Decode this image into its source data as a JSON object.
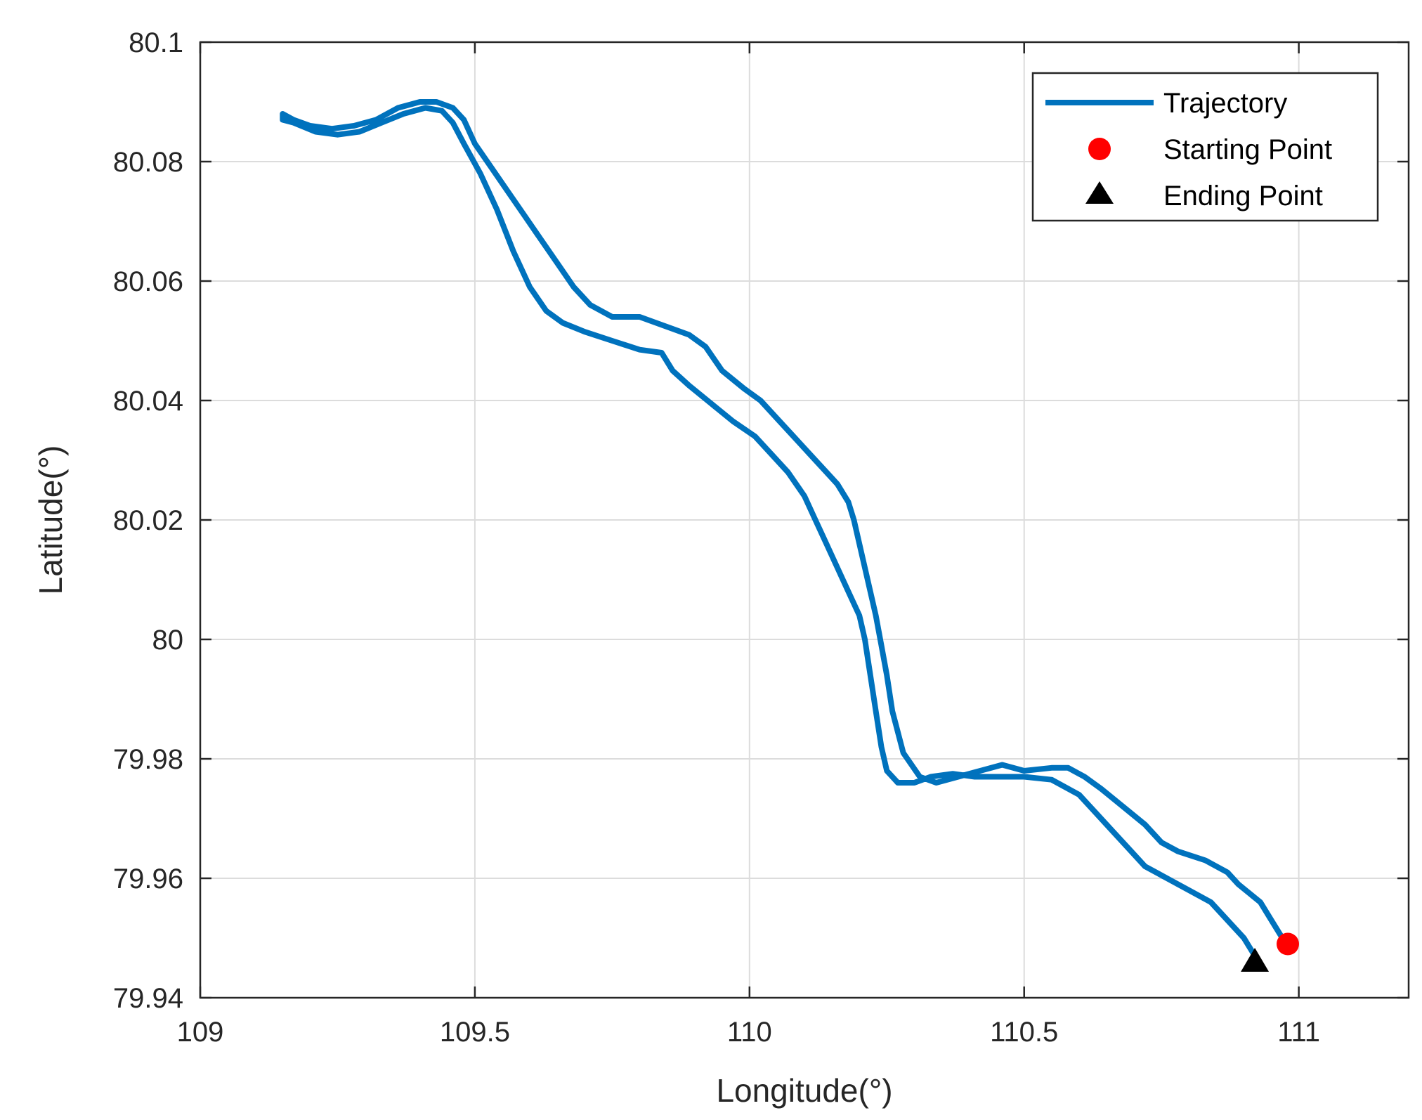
{
  "chart_data": {
    "type": "line",
    "title": "",
    "xlabel": "Longitude(°)",
    "ylabel": "Latitude(°)",
    "xlim": [
      109,
      111.2
    ],
    "ylim": [
      79.94,
      80.1
    ],
    "xticks": [
      109,
      109.5,
      110,
      110.5,
      111
    ],
    "xtick_labels": [
      "109",
      "109.5",
      "110",
      "110.5",
      "111"
    ],
    "yticks": [
      79.94,
      79.96,
      79.98,
      80,
      80.02,
      80.04,
      80.06,
      80.08,
      80.1
    ],
    "ytick_labels": [
      "79.94",
      "79.96",
      "79.98",
      "80",
      "80.02",
      "80.04",
      "80.06",
      "80.08",
      "80.1"
    ],
    "grid": true,
    "legend_position": "top-right",
    "series": [
      {
        "name": "Trajectory",
        "color": "#0072BD",
        "x": [
          110.97,
          110.95,
          110.93,
          110.89,
          110.87,
          110.83,
          110.78,
          110.75,
          110.72,
          110.68,
          110.64,
          110.61,
          110.58,
          110.55,
          110.5,
          110.46,
          110.42,
          110.38,
          110.34,
          110.31,
          110.28,
          110.26,
          110.25,
          110.24,
          110.23,
          110.22,
          110.21,
          110.2,
          110.19,
          110.18,
          110.16,
          110.14,
          110.11,
          110.08,
          110.05,
          110.02,
          109.99,
          109.95,
          109.92,
          109.89,
          109.86,
          109.83,
          109.8,
          109.75,
          109.71,
          109.68,
          109.65,
          109.62,
          109.59,
          109.56,
          109.53,
          109.5,
          109.48,
          109.46,
          109.43,
          109.4,
          109.36,
          109.32,
          109.28,
          109.24,
          109.2,
          109.17,
          109.15,
          109.15,
          109.17,
          109.21,
          109.25,
          109.29,
          109.33,
          109.37,
          109.41,
          109.44,
          109.46,
          109.48,
          109.51,
          109.54,
          109.57,
          109.6,
          109.63,
          109.66,
          109.7,
          109.75,
          109.8,
          109.84,
          109.86,
          109.89,
          109.93,
          109.97,
          110.01,
          110.04,
          110.07,
          110.1,
          110.12,
          110.14,
          110.16,
          110.18,
          110.2,
          110.21,
          110.22,
          110.23,
          110.24,
          110.25,
          110.27,
          110.3,
          110.33,
          110.37,
          110.41,
          110.45,
          110.5,
          110.55,
          110.6,
          110.63,
          110.66,
          110.69,
          110.72,
          110.76,
          110.8,
          110.84,
          110.87,
          110.9,
          110.92
        ],
        "y": [
          79.95,
          79.953,
          79.956,
          79.959,
          79.961,
          79.963,
          79.9645,
          79.966,
          79.969,
          79.972,
          79.975,
          79.977,
          79.9785,
          79.9785,
          79.978,
          79.979,
          79.978,
          79.977,
          79.976,
          79.977,
          79.981,
          79.988,
          79.994,
          79.999,
          80.004,
          80.008,
          80.012,
          80.016,
          80.02,
          80.023,
          80.026,
          80.028,
          80.031,
          80.034,
          80.037,
          80.04,
          80.042,
          80.045,
          80.049,
          80.051,
          80.052,
          80.053,
          80.054,
          80.054,
          80.056,
          80.059,
          80.063,
          80.067,
          80.071,
          80.075,
          80.079,
          80.083,
          80.087,
          80.089,
          80.09,
          80.09,
          80.089,
          80.087,
          80.086,
          80.0855,
          80.086,
          80.087,
          80.088,
          80.087,
          80.0865,
          80.085,
          80.0845,
          80.085,
          80.0865,
          80.088,
          80.089,
          80.0885,
          80.0865,
          80.083,
          80.078,
          80.072,
          80.065,
          80.059,
          80.055,
          80.053,
          80.0515,
          80.05,
          80.0485,
          80.048,
          80.045,
          80.0425,
          80.0395,
          80.0365,
          80.034,
          80.031,
          80.028,
          80.024,
          80.02,
          80.016,
          80.012,
          80.008,
          80.004,
          80.0,
          79.994,
          79.988,
          79.982,
          79.978,
          79.976,
          79.976,
          79.977,
          79.9775,
          79.977,
          79.977,
          79.977,
          79.9765,
          79.974,
          79.971,
          79.968,
          79.965,
          79.962,
          79.96,
          79.958,
          79.956,
          79.953,
          79.95,
          79.947
        ]
      },
      {
        "name": "Starting Point",
        "color": "#FF0000",
        "marker": "circle",
        "x": [
          110.98
        ],
        "y": [
          79.949
        ]
      },
      {
        "name": "Ending Point",
        "color": "#000000",
        "marker": "triangle",
        "x": [
          110.92
        ],
        "y": [
          79.946
        ]
      }
    ]
  }
}
